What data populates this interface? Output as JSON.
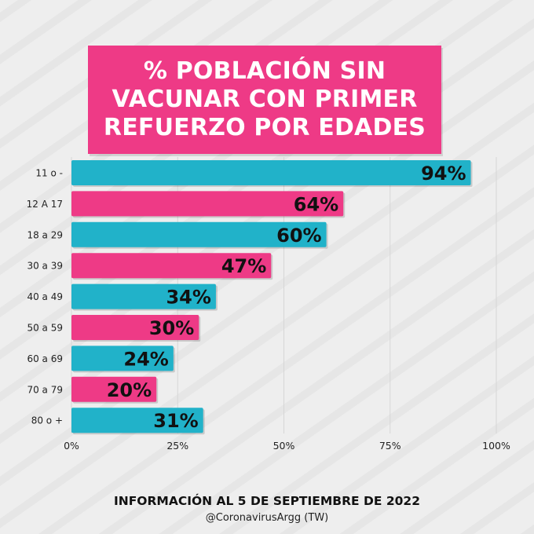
{
  "title": "% POBLACIÓN SIN\nVACUNAR CON PRIMER\nREFUERZO POR EDADES",
  "footer": {
    "main": "INFORMACIÓN AL 5 DE SEPTIEMBRE DE 2022",
    "credit": "@CoronavirusArgg (TW)"
  },
  "colors": {
    "teal": "#21b2c9",
    "pink": "#ee3a86",
    "title_bg": "#ee3a86"
  },
  "chart_data": {
    "type": "bar",
    "orientation": "horizontal",
    "categories": [
      "11 o -",
      "12 A 17",
      "18 a 29",
      "30 a 39",
      "40 a 49",
      "50 a 59",
      "60 a 69",
      "70 a 79",
      "80 o +"
    ],
    "values": [
      94,
      64,
      60,
      47,
      34,
      30,
      24,
      20,
      31
    ],
    "data_labels": [
      "94%",
      "64%",
      "60%",
      "47%",
      "34%",
      "30%",
      "24%",
      "20%",
      "31%"
    ],
    "bar_colors": [
      "teal",
      "pink",
      "teal",
      "pink",
      "teal",
      "pink",
      "teal",
      "pink",
      "teal"
    ],
    "xlim": [
      0,
      100
    ],
    "x_ticks": [
      0,
      25,
      50,
      75,
      100
    ],
    "x_tick_labels": [
      "0%",
      "25%",
      "50%",
      "75%",
      "100%"
    ],
    "grid": "vertical",
    "legend": "none"
  }
}
